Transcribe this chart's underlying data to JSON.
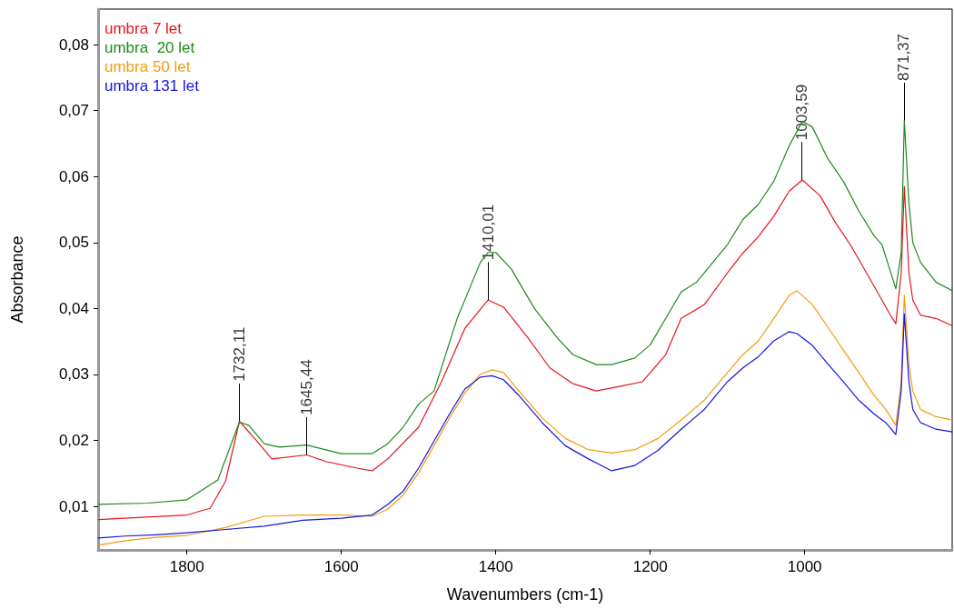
{
  "chart_data": {
    "type": "line",
    "xlabel": "Wavenumbers (cm-1)",
    "ylabel": "Absorbance",
    "legend": "top left",
    "grid": false,
    "marker": "none",
    "line_style": "solid",
    "xlim": [
      1915,
      809
    ],
    "xticks": [
      1800,
      1600,
      1400,
      1200,
      1000
    ],
    "ylim": [
      0.0034,
      0.0854
    ],
    "yticks": [
      {
        "value": 0.01,
        "label": "0,01"
      },
      {
        "value": 0.02,
        "label": "0,02"
      },
      {
        "value": 0.03,
        "label": "0,03"
      },
      {
        "value": 0.04,
        "label": "0,04"
      },
      {
        "value": 0.05,
        "label": "0,05"
      },
      {
        "value": 0.06,
        "label": "0,06"
      },
      {
        "value": 0.07,
        "label": "0,07"
      },
      {
        "value": 0.08,
        "label": "0,08"
      }
    ],
    "annotations": [
      {
        "text": "1732,11",
        "x": 1732.11,
        "y": 0.0229
      },
      {
        "text": "1645,44",
        "x": 1645.44,
        "y": 0.0178
      },
      {
        "text": "1410,01",
        "x": 1410.01,
        "y": 0.0413
      },
      {
        "text": "1003,59",
        "x": 1003.59,
        "y": 0.0595
      },
      {
        "text": "871,37",
        "x": 871.37,
        "y": 0.0685
      }
    ],
    "series": [
      {
        "name": "umbra 7 let",
        "color": "#e8141c",
        "x": [
          1915,
          1800,
          1770,
          1750,
          1732,
          1710,
          1690,
          1645,
          1620,
          1580,
          1560,
          1540,
          1500,
          1470,
          1440,
          1410,
          1390,
          1360,
          1330,
          1300,
          1270,
          1240,
          1210,
          1180,
          1160,
          1130,
          1100,
          1080,
          1060,
          1040,
          1020,
          1003,
          980,
          960,
          940,
          920,
          900,
          890,
          882,
          875,
          871,
          865,
          860,
          850,
          830,
          809
        ],
        "values": [
          0.008,
          0.0087,
          0.0097,
          0.0138,
          0.0229,
          0.02,
          0.0172,
          0.0178,
          0.0168,
          0.0158,
          0.0154,
          0.0172,
          0.022,
          0.029,
          0.037,
          0.0413,
          0.0402,
          0.0358,
          0.031,
          0.0286,
          0.0275,
          0.0282,
          0.0289,
          0.033,
          0.0385,
          0.0406,
          0.0454,
          0.0484,
          0.0509,
          0.054,
          0.0578,
          0.0595,
          0.0571,
          0.053,
          0.0495,
          0.0454,
          0.0413,
          0.0392,
          0.0377,
          0.0454,
          0.0585,
          0.0454,
          0.0413,
          0.039,
          0.0385,
          0.0374
        ]
      },
      {
        "name": "umbra  20 let",
        "color": "#1a8a1a",
        "x": [
          1915,
          1850,
          1800,
          1780,
          1760,
          1732,
          1720,
          1700,
          1680,
          1645,
          1600,
          1560,
          1540,
          1520,
          1500,
          1480,
          1450,
          1420,
          1410,
          1400,
          1380,
          1350,
          1320,
          1300,
          1270,
          1250,
          1220,
          1200,
          1180,
          1160,
          1140,
          1100,
          1080,
          1060,
          1040,
          1020,
          1003,
          990,
          970,
          950,
          930,
          910,
          900,
          890,
          882,
          875,
          871,
          865,
          860,
          850,
          830,
          809
        ],
        "values": [
          0.0103,
          0.0105,
          0.011,
          0.0125,
          0.014,
          0.0228,
          0.0223,
          0.0195,
          0.019,
          0.0193,
          0.018,
          0.018,
          0.0195,
          0.022,
          0.0255,
          0.0275,
          0.0385,
          0.047,
          0.0485,
          0.0485,
          0.046,
          0.04,
          0.0355,
          0.033,
          0.0315,
          0.0315,
          0.0325,
          0.0345,
          0.0385,
          0.0425,
          0.044,
          0.0497,
          0.0535,
          0.0558,
          0.0593,
          0.0647,
          0.0684,
          0.0675,
          0.0627,
          0.0593,
          0.0548,
          0.051,
          0.0497,
          0.046,
          0.043,
          0.0485,
          0.0685,
          0.056,
          0.05,
          0.047,
          0.044,
          0.0427
        ]
      },
      {
        "name": "umbra 50 let",
        "color": "#f59a0f",
        "x": [
          1915,
          1880,
          1840,
          1800,
          1750,
          1700,
          1650,
          1600,
          1560,
          1540,
          1520,
          1500,
          1480,
          1460,
          1440,
          1420,
          1405,
          1390,
          1370,
          1340,
          1310,
          1280,
          1250,
          1220,
          1190,
          1160,
          1130,
          1100,
          1080,
          1060,
          1040,
          1020,
          1010,
          990,
          970,
          950,
          930,
          910,
          895,
          882,
          875,
          871,
          865,
          860,
          850,
          830,
          809
        ],
        "values": [
          0.0041,
          0.0048,
          0.0053,
          0.0056,
          0.0068,
          0.0085,
          0.0087,
          0.0087,
          0.0085,
          0.0096,
          0.0117,
          0.0151,
          0.0192,
          0.0234,
          0.0272,
          0.03,
          0.0307,
          0.0303,
          0.0275,
          0.0234,
          0.0203,
          0.0186,
          0.0181,
          0.0186,
          0.0203,
          0.0231,
          0.0261,
          0.0303,
          0.033,
          0.0351,
          0.0385,
          0.042,
          0.0427,
          0.0406,
          0.0372,
          0.0337,
          0.0303,
          0.0268,
          0.0247,
          0.0223,
          0.0289,
          0.042,
          0.0316,
          0.0275,
          0.0247,
          0.0236,
          0.0231
        ]
      },
      {
        "name": "umbra 131 let",
        "color": "#1414e6",
        "x": [
          1915,
          1880,
          1840,
          1800,
          1750,
          1700,
          1650,
          1600,
          1560,
          1540,
          1520,
          1500,
          1480,
          1460,
          1440,
          1420,
          1405,
          1390,
          1370,
          1340,
          1310,
          1280,
          1250,
          1220,
          1190,
          1160,
          1130,
          1100,
          1080,
          1060,
          1040,
          1020,
          1010,
          990,
          970,
          950,
          930,
          910,
          895,
          882,
          875,
          871,
          865,
          860,
          850,
          830,
          809
        ],
        "values": [
          0.0052,
          0.0055,
          0.0057,
          0.006,
          0.0065,
          0.007,
          0.0079,
          0.0082,
          0.0087,
          0.0103,
          0.0123,
          0.0158,
          0.0199,
          0.024,
          0.0278,
          0.0296,
          0.0298,
          0.0292,
          0.0268,
          0.0227,
          0.0192,
          0.0172,
          0.0154,
          0.0162,
          0.0185,
          0.0217,
          0.0247,
          0.0289,
          0.031,
          0.0327,
          0.0351,
          0.0365,
          0.0362,
          0.0344,
          0.0316,
          0.0289,
          0.0261,
          0.024,
          0.0227,
          0.0209,
          0.0275,
          0.0392,
          0.0289,
          0.0247,
          0.0227,
          0.0217,
          0.0213
        ]
      }
    ]
  }
}
